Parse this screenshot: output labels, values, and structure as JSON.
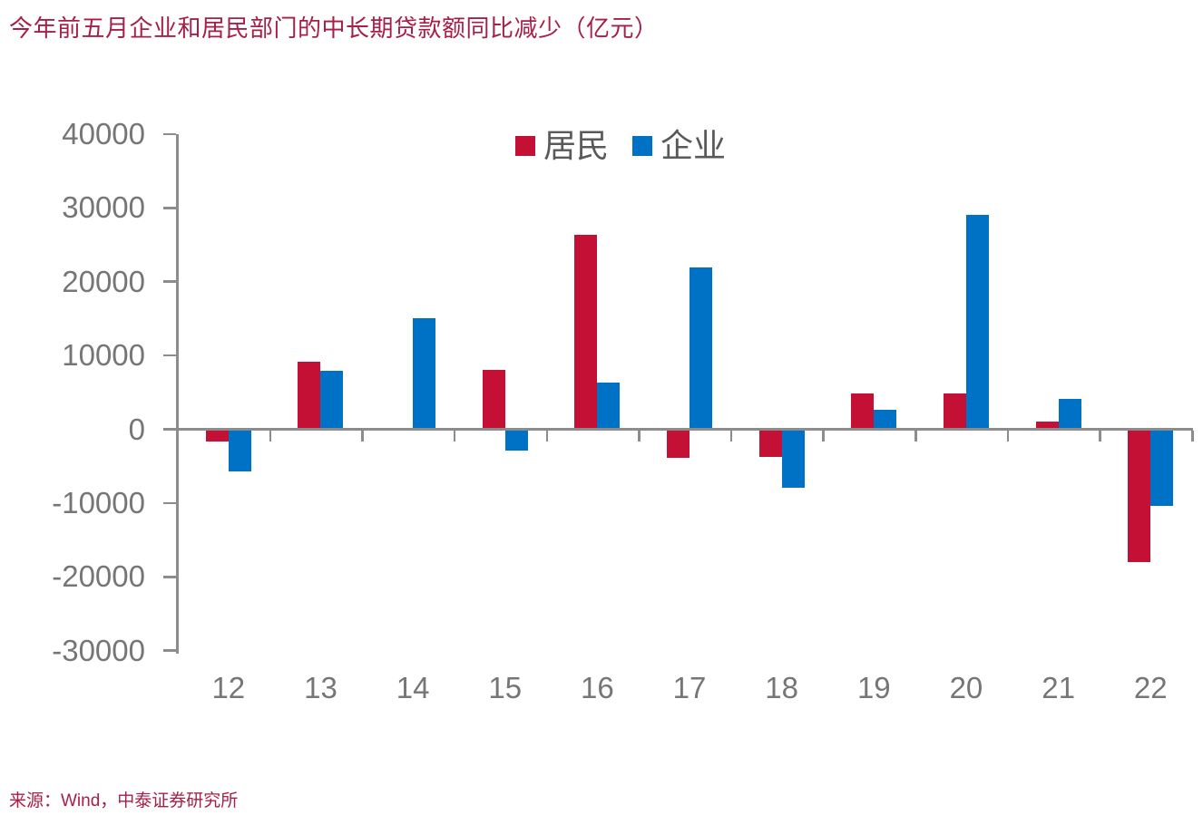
{
  "title": "今年前五月企业和居民部门的中长期贷款额同比减少（亿元）",
  "source_note": "来源：Wind，中泰证券研究所",
  "colors": {
    "title": "#A81E46",
    "source": "#A81E46",
    "resident": "#C51036",
    "enterprise": "#0072C6",
    "axis": "#8C8C8C",
    "tick_label": "#767676",
    "legend_text": "#595959"
  },
  "chart_data": {
    "type": "bar",
    "title": "今年前五月企业和居民部门的中长期贷款额同比减少（亿元）",
    "categories": [
      "12",
      "13",
      "14",
      "15",
      "16",
      "17",
      "18",
      "19",
      "20",
      "21",
      "22"
    ],
    "series": [
      {
        "name": "居民",
        "color": "#C51036",
        "values": [
          -1600,
          9100,
          -200,
          8100,
          26300,
          -3900,
          -3700,
          4800,
          4900,
          1100,
          -18000
        ]
      },
      {
        "name": "企业",
        "color": "#0072C6",
        "values": [
          -5700,
          7900,
          15000,
          -2900,
          6300,
          21900,
          -7900,
          2700,
          29100,
          4100,
          -10400
        ]
      }
    ],
    "xlabel": "",
    "ylabel": "",
    "ylim": [
      -30000,
      40000
    ],
    "ytick_step": 10000,
    "grid": false,
    "legend_position": "top-center"
  }
}
